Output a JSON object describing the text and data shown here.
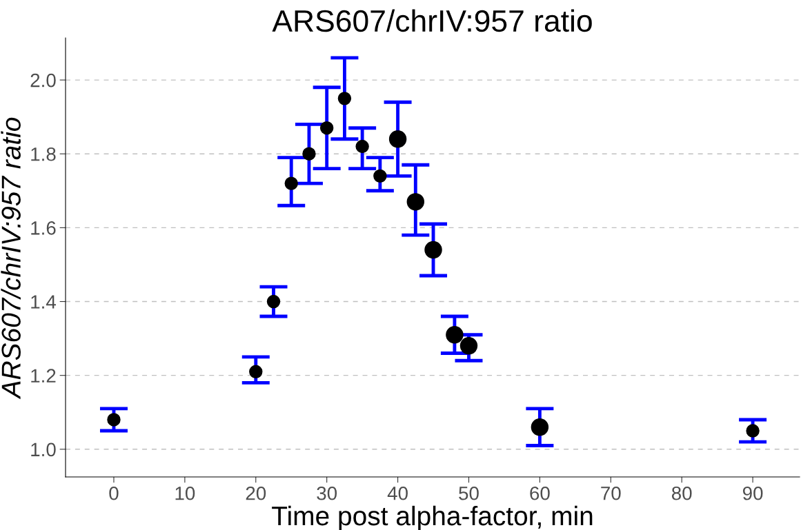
{
  "chart_data": {
    "type": "bubble",
    "title": "ARS607/chrIV:957 ratio",
    "xlabel": "Time post alpha-factor, min",
    "ylabel": "ARS607/chrIV:957 ratio",
    "x": [
      0,
      20,
      22.5,
      25,
      27.5,
      30,
      32.5,
      35,
      37.5,
      40,
      42.5,
      45,
      48,
      50,
      60,
      90
    ],
    "series": [
      {
        "color": "#000000",
        "values": [
          1.08,
          1.21,
          1.4,
          1.72,
          1.8,
          1.87,
          1.95,
          1.82,
          1.74,
          1.84,
          1.67,
          1.54,
          1.31,
          1.28,
          1.06,
          1.05
        ],
        "sizes": [
          0.56,
          0.56,
          0.56,
          0.56,
          0.56,
          0.56,
          0.56,
          0.56,
          0.56,
          1,
          1,
          1,
          1,
          1,
          1,
          0.56
        ],
        "errors": [
          0.03,
          [
            1.18,
            1.25
          ],
          0.04,
          [
            1.66,
            1.79
          ],
          0.08,
          0.11,
          0.11,
          [
            1.76,
            1.87
          ],
          [
            1.7,
            1.79
          ],
          0.1,
          [
            1.58,
            1.77
          ],
          0.07,
          0.05,
          [
            1.24,
            1.31
          ],
          0.05,
          0.03
        ]
      }
    ],
    "xlim": [
      -6.8,
      96.6
    ],
    "ylim": [
      0.925,
      2.114
    ],
    "xticks": [
      0,
      10,
      20,
      30,
      40,
      50,
      60,
      70,
      80,
      90
    ],
    "yticks": [
      {
        "value": 1.0,
        "label": "1.0"
      },
      {
        "value": 1.2,
        "label": "1.2"
      },
      {
        "value": 1.4,
        "label": "1.4"
      },
      {
        "value": 1.6,
        "label": "1.6"
      },
      {
        "value": 1.8,
        "label": "1.8"
      },
      {
        "value": 2.0,
        "label": "2.0"
      }
    ],
    "grid": "y",
    "legend": false,
    "marker": "circle"
  }
}
